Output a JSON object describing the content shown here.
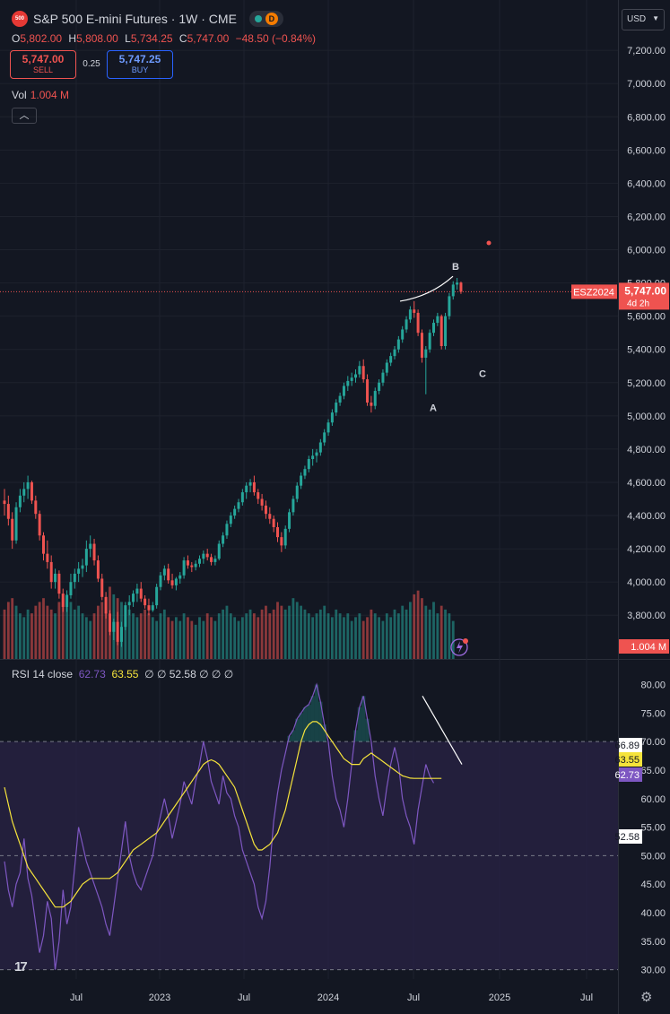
{
  "header": {
    "symbol_badge": "500",
    "title": "S&P 500 E-mini Futures · 1W · CME",
    "delay_badge": "D",
    "ohlc": {
      "o_label": "O",
      "o": "5,802.00",
      "h_label": "H",
      "h": "5,808.00",
      "l_label": "L",
      "l": "5,734.25",
      "c_label": "C",
      "c": "5,747.00",
      "change": "−48.50 (−0.84%)"
    },
    "sell_price": "5,747.00",
    "sell_label": "SELL",
    "spread": "0.25",
    "buy_price": "5,747.25",
    "buy_label": "BUY",
    "vol_label": "Vol",
    "vol_value": "1.004 M",
    "collapse_icon": "chevron-up-icon"
  },
  "currency": "USD",
  "rsi_legend": {
    "name": "RSI",
    "params": "14 close",
    "rsi": "62.73",
    "ma": "63.55",
    "na1": "∅",
    "na2": "∅",
    "extra": "52.58",
    "na3": "∅",
    "na4": "∅",
    "na5": "∅"
  },
  "price_tag": {
    "symbol": "ESZ2024",
    "price": "5,747.00",
    "countdown": "4d 2h"
  },
  "volume_tag": "1.004 M",
  "rsi_tags": [
    "66.89",
    "63.55",
    "62.73",
    "52.58"
  ],
  "annotations": [
    "A",
    "B",
    "C"
  ],
  "colors": {
    "up": "#26a69a",
    "down": "#ef5350",
    "background": "#131722",
    "rsi_line": "#7e57c2",
    "rsi_ma": "#f5e33b",
    "band": "#2a2346"
  },
  "chart_data": [
    {
      "type": "candlestick",
      "series_name": "S&P 500 E-mini Futures",
      "x_ticks": [
        "Jul",
        "2023",
        "Jul",
        "2024",
        "Jul",
        "2025",
        "Jul"
      ],
      "y_ticks": [
        "7,200.00",
        "7,000.00",
        "6,800.00",
        "6,600.00",
        "6,400.00",
        "6,200.00",
        "6,000.00",
        "5,800.00",
        "5,600.00",
        "5,400.00",
        "5,200.00",
        "5,000.00",
        "4,800.00",
        "4,600.00",
        "4,400.00",
        "4,200.00",
        "4,000.00",
        "3,800.00"
      ],
      "ylim": [
        3580,
        7260
      ],
      "candles": [
        [
          4490,
          4560,
          4400,
          4470
        ],
        [
          4470,
          4520,
          4340,
          4380
        ],
        [
          4380,
          4420,
          4200,
          4250
        ],
        [
          4250,
          4480,
          4230,
          4450
        ],
        [
          4450,
          4560,
          4420,
          4520
        ],
        [
          4520,
          4600,
          4480,
          4560
        ],
        [
          4560,
          4640,
          4500,
          4600
        ],
        [
          4600,
          4610,
          4470,
          4490
        ],
        [
          4490,
          4520,
          4380,
          4410
        ],
        [
          4410,
          4430,
          4250,
          4280
        ],
        [
          4280,
          4300,
          4130,
          4170
        ],
        [
          4170,
          4250,
          4080,
          4120
        ],
        [
          4120,
          4160,
          3960,
          4000
        ],
        [
          4000,
          4080,
          3960,
          4050
        ],
        [
          4050,
          4070,
          3900,
          3930
        ],
        [
          3930,
          3960,
          3820,
          3850
        ],
        [
          3850,
          3950,
          3820,
          3920
        ],
        [
          3920,
          4050,
          3900,
          4000
        ],
        [
          4000,
          4080,
          3960,
          4050
        ],
        [
          4050,
          4120,
          4000,
          4080
        ],
        [
          4080,
          4140,
          4030,
          4100
        ],
        [
          4100,
          4250,
          4060,
          4200
        ],
        [
          4200,
          4280,
          4150,
          4230
        ],
        [
          4230,
          4260,
          4100,
          4130
        ],
        [
          4130,
          4160,
          4000,
          4020
        ],
        [
          4020,
          4050,
          3890,
          3910
        ],
        [
          3910,
          3940,
          3780,
          3810
        ],
        [
          3810,
          3830,
          3680,
          3700
        ],
        [
          3700,
          3780,
          3650,
          3760
        ],
        [
          3760,
          3820,
          3620,
          3640
        ],
        [
          3640,
          3760,
          3610,
          3730
        ],
        [
          3730,
          3880,
          3710,
          3860
        ],
        [
          3860,
          3920,
          3800,
          3880
        ],
        [
          3880,
          3950,
          3850,
          3930
        ],
        [
          3930,
          3990,
          3880,
          3960
        ],
        [
          3960,
          4000,
          3880,
          3900
        ],
        [
          3900,
          3920,
          3840,
          3860
        ],
        [
          3860,
          3900,
          3800,
          3830
        ],
        [
          3830,
          3880,
          3820,
          3860
        ],
        [
          3860,
          3990,
          3840,
          3970
        ],
        [
          3970,
          4060,
          3950,
          4040
        ],
        [
          4040,
          4100,
          4010,
          4080
        ],
        [
          4080,
          4110,
          3990,
          4010
        ],
        [
          4010,
          4050,
          3960,
          3980
        ],
        [
          3980,
          4030,
          3950,
          4020
        ],
        [
          4020,
          4060,
          3990,
          4040
        ],
        [
          4040,
          4150,
          4020,
          4130
        ],
        [
          4130,
          4160,
          4080,
          4100
        ],
        [
          4100,
          4120,
          4060,
          4090
        ],
        [
          4090,
          4130,
          4070,
          4110
        ],
        [
          4110,
          4160,
          4090,
          4140
        ],
        [
          4140,
          4190,
          4110,
          4170
        ],
        [
          4170,
          4200,
          4130,
          4150
        ],
        [
          4150,
          4170,
          4100,
          4120
        ],
        [
          4120,
          4160,
          4100,
          4140
        ],
        [
          4140,
          4250,
          4130,
          4230
        ],
        [
          4230,
          4300,
          4210,
          4280
        ],
        [
          4280,
          4370,
          4260,
          4350
        ],
        [
          4350,
          4420,
          4330,
          4400
        ],
        [
          4400,
          4460,
          4380,
          4440
        ],
        [
          4440,
          4500,
          4420,
          4480
        ],
        [
          4480,
          4560,
          4460,
          4540
        ],
        [
          4540,
          4600,
          4500,
          4580
        ],
        [
          4580,
          4620,
          4540,
          4600
        ],
        [
          4600,
          4640,
          4520,
          4540
        ],
        [
          4540,
          4560,
          4470,
          4500
        ],
        [
          4500,
          4530,
          4430,
          4460
        ],
        [
          4460,
          4490,
          4380,
          4410
        ],
        [
          4410,
          4450,
          4350,
          4380
        ],
        [
          4380,
          4400,
          4300,
          4330
        ],
        [
          4330,
          4360,
          4240,
          4270
        ],
        [
          4270,
          4300,
          4180,
          4220
        ],
        [
          4220,
          4340,
          4200,
          4320
        ],
        [
          4320,
          4440,
          4300,
          4420
        ],
        [
          4420,
          4520,
          4400,
          4500
        ],
        [
          4500,
          4600,
          4480,
          4580
        ],
        [
          4580,
          4660,
          4560,
          4640
        ],
        [
          4640,
          4700,
          4620,
          4680
        ],
        [
          4680,
          4760,
          4660,
          4740
        ],
        [
          4740,
          4800,
          4700,
          4760
        ],
        [
          4760,
          4800,
          4720,
          4780
        ],
        [
          4780,
          4860,
          4760,
          4840
        ],
        [
          4840,
          4920,
          4820,
          4900
        ],
        [
          4900,
          4980,
          4880,
          4960
        ],
        [
          4960,
          5040,
          4940,
          5020
        ],
        [
          5020,
          5100,
          5000,
          5080
        ],
        [
          5080,
          5140,
          5060,
          5120
        ],
        [
          5120,
          5200,
          5100,
          5180
        ],
        [
          5180,
          5240,
          5150,
          5210
        ],
        [
          5210,
          5260,
          5180,
          5230
        ],
        [
          5230,
          5280,
          5200,
          5250
        ],
        [
          5250,
          5330,
          5230,
          5300
        ],
        [
          5300,
          5340,
          5200,
          5220
        ],
        [
          5220,
          5250,
          5060,
          5080
        ],
        [
          5080,
          5120,
          5020,
          5060
        ],
        [
          5060,
          5170,
          5040,
          5150
        ],
        [
          5150,
          5220,
          5130,
          5200
        ],
        [
          5200,
          5280,
          5180,
          5260
        ],
        [
          5260,
          5340,
          5240,
          5320
        ],
        [
          5320,
          5380,
          5300,
          5360
        ],
        [
          5360,
          5420,
          5340,
          5400
        ],
        [
          5400,
          5480,
          5380,
          5460
        ],
        [
          5460,
          5540,
          5440,
          5520
        ],
        [
          5520,
          5600,
          5500,
          5580
        ],
        [
          5580,
          5660,
          5560,
          5640
        ],
        [
          5640,
          5690,
          5590,
          5620
        ],
        [
          5620,
          5640,
          5480,
          5500
        ],
        [
          5500,
          5520,
          5320,
          5350
        ],
        [
          5350,
          5420,
          5130,
          5400
        ],
        [
          5400,
          5520,
          5380,
          5500
        ],
        [
          5500,
          5580,
          5480,
          5560
        ],
        [
          5560,
          5620,
          5540,
          5600
        ],
        [
          5600,
          5610,
          5400,
          5420
        ],
        [
          5420,
          5620,
          5400,
          5600
        ],
        [
          5600,
          5740,
          5580,
          5720
        ],
        [
          5720,
          5810,
          5700,
          5790
        ],
        [
          5790,
          5830,
          5760,
          5802
        ],
        [
          5802,
          5808,
          5734,
          5747
        ]
      ],
      "volume_ylim_top": 4.6,
      "volume": [
        1.3,
        1.5,
        1.6,
        1.4,
        1.2,
        1.1,
        1.3,
        1.2,
        1.4,
        1.5,
        1.6,
        1.4,
        1.3,
        1.2,
        1.5,
        1.6,
        1.7,
        1.5,
        1.3,
        1.4,
        1.2,
        1.1,
        1.0,
        1.2,
        1.4,
        1.5,
        1.6,
        1.9,
        1.7,
        1.6,
        1.5,
        1.4,
        1.3,
        1.2,
        1.1,
        1.2,
        1.3,
        1.2,
        1.1,
        1.0,
        1.2,
        1.3,
        1.1,
        1.0,
        1.1,
        1.0,
        1.2,
        1.1,
        1.0,
        0.9,
        1.1,
        1.0,
        1.2,
        1.1,
        1.0,
        1.2,
        1.3,
        1.4,
        1.2,
        1.1,
        1.0,
        1.1,
        1.2,
        1.3,
        1.2,
        1.1,
        1.3,
        1.4,
        1.2,
        1.3,
        1.5,
        1.4,
        1.3,
        1.4,
        1.6,
        1.5,
        1.4,
        1.3,
        1.2,
        1.1,
        1.2,
        1.3,
        1.4,
        1.2,
        1.1,
        1.3,
        1.2,
        1.1,
        1.2,
        1.0,
        1.1,
        1.2,
        1.0,
        1.1,
        1.3,
        1.2,
        1.1,
        1.0,
        1.2,
        1.1,
        1.3,
        1.2,
        1.4,
        1.3,
        1.5,
        1.7,
        1.8,
        1.6,
        1.4,
        1.3,
        1.5,
        1.2,
        1.4,
        1.3,
        1.2,
        1.0
      ]
    },
    {
      "type": "line",
      "title": "RSI 14 close",
      "y_ticks": [
        "80.00",
        "75.00",
        "70.00",
        "65.00",
        "60.00",
        "55.00",
        "50.00",
        "45.00",
        "40.00",
        "35.00",
        "30.00"
      ],
      "ylim": [
        29,
        81.5
      ],
      "bands": [
        30,
        50,
        70
      ],
      "series": [
        {
          "name": "RSI",
          "values": [
            49,
            44,
            41,
            45,
            47,
            53,
            46,
            43,
            38,
            33,
            36,
            42,
            39,
            30,
            35,
            44,
            38,
            41,
            48,
            55,
            52,
            49,
            47,
            45,
            43,
            41,
            38,
            36,
            41,
            46,
            51,
            56,
            50,
            47,
            45,
            44,
            46,
            48,
            50,
            54,
            57,
            60,
            57,
            53,
            56,
            59,
            63,
            61,
            59,
            63,
            66,
            70,
            67,
            63,
            61,
            59,
            64,
            61,
            60,
            57,
            55,
            51,
            49,
            47,
            45,
            41,
            39,
            42,
            48,
            56,
            61,
            65,
            68,
            71,
            72,
            74,
            75,
            76,
            76.5,
            78,
            80,
            77,
            73,
            70,
            64,
            60,
            58,
            55,
            60,
            66,
            72,
            76,
            78,
            74,
            70,
            64,
            60,
            57,
            62,
            66,
            69,
            66,
            60,
            57,
            55,
            52,
            58,
            62,
            66,
            64,
            62.73
          ]
        },
        {
          "name": "MA",
          "values": [
            62,
            59,
            56,
            54,
            52,
            50,
            48,
            47,
            46,
            45,
            44,
            43,
            42,
            41,
            41,
            41,
            41.5,
            42,
            43,
            44,
            45,
            45.5,
            46,
            46,
            46,
            46,
            46,
            46,
            46.5,
            47,
            48,
            49,
            50,
            51,
            51.5,
            52,
            52.5,
            53,
            53.5,
            54,
            55,
            56,
            57,
            58,
            59,
            60,
            61,
            62,
            63,
            64,
            65,
            66,
            66.5,
            66.8,
            66.5,
            66,
            65,
            64,
            63,
            62,
            60,
            58,
            56,
            54,
            52,
            51,
            51,
            51.5,
            52,
            53,
            54,
            56,
            58,
            61,
            64,
            67,
            70,
            72,
            73,
            73.5,
            73.5,
            73,
            72,
            71,
            70,
            69,
            68,
            67,
            66.5,
            66,
            66,
            66,
            67,
            67.5,
            68,
            67.5,
            67,
            66.5,
            66,
            65.5,
            65,
            64.5,
            64,
            63.8,
            63.6,
            63.55,
            63.55,
            63.55,
            63.55,
            63.55,
            63.55,
            63.55,
            63.55
          ]
        }
      ]
    }
  ]
}
